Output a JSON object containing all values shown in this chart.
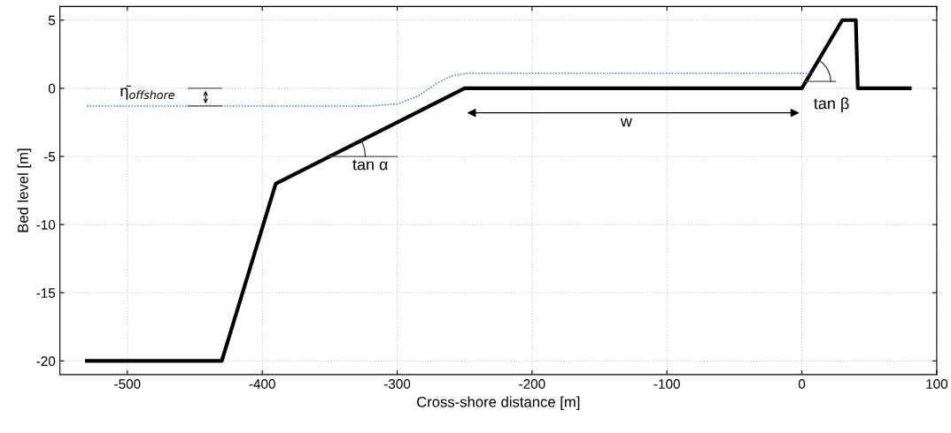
{
  "chart_data": {
    "type": "line",
    "xlabel": "Cross-shore distance [m]",
    "ylabel": "Bed level [m]",
    "xlim": [
      -550,
      100
    ],
    "ylim": [
      -21,
      6
    ],
    "xticks": [
      -500,
      -400,
      -300,
      -200,
      -100,
      0,
      100
    ],
    "yticks": [
      -20,
      -15,
      -10,
      -5,
      0,
      5
    ],
    "grid": true,
    "marker": "none",
    "series": [
      {
        "color": "#000000",
        "line_style": "solid",
        "x": [
          -530,
          -430,
          -390,
          -250,
          0,
          30,
          40,
          41.5,
          80
        ],
        "values": [
          -20,
          -20,
          -7,
          0,
          0,
          5,
          5,
          0,
          0
        ]
      },
      {
        "color": "#3c78f0",
        "line_style": "dotted",
        "x": [
          -530,
          -320,
          -300,
          -285,
          -270,
          -260,
          -248,
          -200,
          0,
          9
        ],
        "values": [
          -1.3,
          -1.3,
          -1.15,
          -0.6,
          0.4,
          0.9,
          1.1,
          1.1,
          1.1,
          1.1
        ]
      }
    ],
    "annotations": [
      "η̄$_{offshore}$",
      "tan α",
      "w",
      "tan β"
    ]
  }
}
